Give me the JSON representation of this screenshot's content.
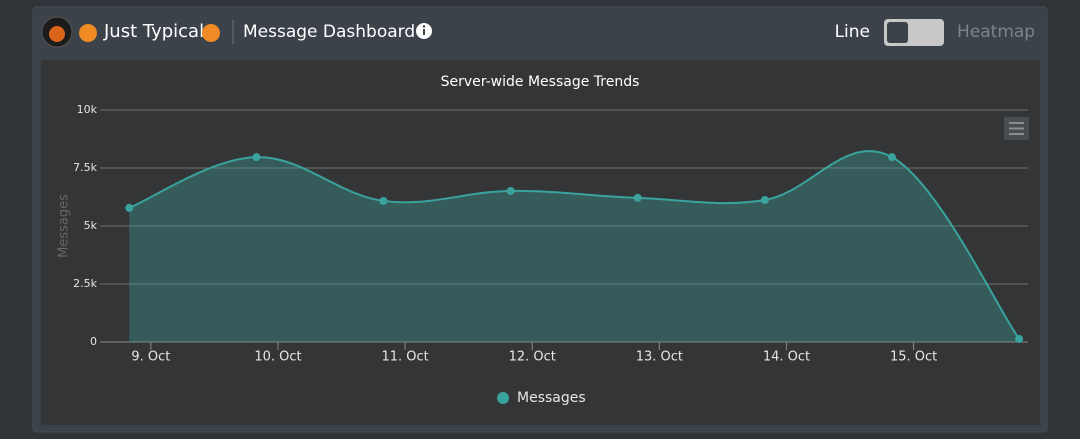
{
  "header": {
    "server": "Just Typical",
    "title": "Message Dashboard",
    "toggle_left": "Line",
    "toggle_right": "Heatmap"
  },
  "chart_data": {
    "type": "area",
    "title": "Server-wide Message Trends",
    "y_label": "Messages",
    "x": [
      8.83,
      9.83,
      10.83,
      11.83,
      12.83,
      13.83,
      14.83,
      15.83
    ],
    "series": [
      {
        "name": "Messages",
        "color": "#3aa39d",
        "values": [
          5780,
          7970,
          6080,
          6510,
          6210,
          6120,
          7970,
          130
        ]
      }
    ],
    "xlim": [
      8.6,
      15.9
    ],
    "xticks": [
      {
        "value": 9,
        "label": "9. Oct"
      },
      {
        "value": 10,
        "label": "10. Oct"
      },
      {
        "value": 11,
        "label": "11. Oct"
      },
      {
        "value": 12,
        "label": "12. Oct"
      },
      {
        "value": 13,
        "label": "13. Oct"
      },
      {
        "value": 14,
        "label": "14. Oct"
      },
      {
        "value": 15,
        "label": "15. Oct"
      }
    ],
    "ylim": [
      0,
      10000
    ],
    "yticks": [
      0,
      {
        "value": 2500,
        "label": "2.5k"
      },
      {
        "value": 5000,
        "label": "5k"
      },
      {
        "value": 7500,
        "label": "7.5k"
      },
      {
        "value": 10000,
        "label": "10k"
      }
    ],
    "grid": true,
    "legend": "bottom"
  }
}
